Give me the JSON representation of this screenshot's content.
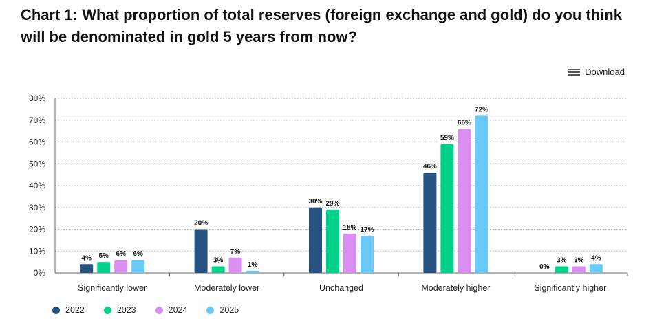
{
  "title": "Chart 1: What proportion of total reserves (foreign exchange and gold) do you think will be denominated in gold 5 years from now?",
  "download_label": "Download",
  "colors": {
    "2022": "#26537f",
    "2023": "#00d387",
    "2024": "#d98ef2",
    "2025": "#69c9f7",
    "grid": "#b8b8b8",
    "axis": "#666666"
  },
  "legend": [
    {
      "label": "2022",
      "color": "#26537f"
    },
    {
      "label": "2023",
      "color": "#00d387"
    },
    {
      "label": "2024",
      "color": "#d98ef2"
    },
    {
      "label": "2025",
      "color": "#69c9f7"
    }
  ],
  "chart_data": {
    "type": "bar",
    "title": "Chart 1: What proportion of total reserves (foreign exchange and gold) do you think will be denominated in gold 5 years from now?",
    "categories": [
      "Significantly lower",
      "Moderately lower",
      "Unchanged",
      "Moderately higher",
      "Significantly higher"
    ],
    "series": [
      {
        "name": "2022",
        "values": [
          4,
          20,
          30,
          46,
          0
        ]
      },
      {
        "name": "2023",
        "values": [
          5,
          3,
          29,
          59,
          3
        ]
      },
      {
        "name": "2024",
        "values": [
          6,
          7,
          18,
          66,
          3
        ]
      },
      {
        "name": "2025",
        "values": [
          6,
          1,
          17,
          72,
          4
        ]
      }
    ],
    "ylim": [
      0,
      80
    ],
    "yticks": [
      "0%",
      "10%",
      "20%",
      "30%",
      "40%",
      "50%",
      "60%",
      "70%",
      "80%"
    ],
    "value_suffix": "%",
    "xlabel": "",
    "ylabel": "",
    "grid": true,
    "legend_position": "bottom-left"
  }
}
